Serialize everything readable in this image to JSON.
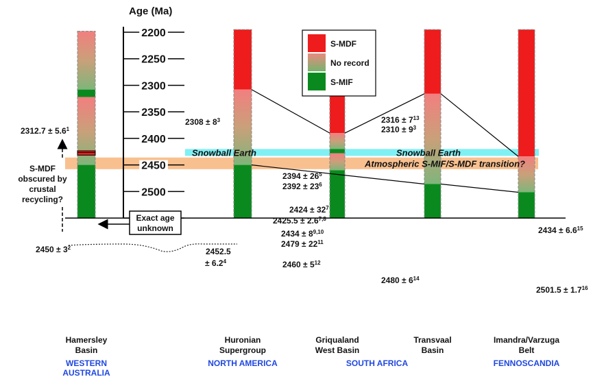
{
  "axis": {
    "title": "Age (Ma)",
    "ticks": [
      2200,
      2250,
      2300,
      2350,
      2400,
      2450,
      2500,
      2550
    ]
  },
  "legend": [
    {
      "label": "S-MDF",
      "color": "#ee1c1c"
    },
    {
      "label": "No record",
      "color": "#a8b97a"
    },
    {
      "label": "S-MIF",
      "color": "#0a8a1e"
    }
  ],
  "colors": {
    "smdf": "#ee1c1c",
    "smif": "#0a8a1e",
    "snowball": "#7ff0f4",
    "transition": "#f9c08f"
  },
  "bands": {
    "snowball": {
      "label": "Snowball Earth",
      "label_right": "Snowball Earth",
      "from": 2420,
      "to": 2433
    },
    "transition": {
      "label": "Atmospheric S-MIF/S-MDF transition?",
      "from": 2436,
      "to": 2458
    }
  },
  "columns": [
    {
      "id": "hamersley",
      "name": [
        "Hamersley",
        "Basin"
      ],
      "region": [
        "WESTERN",
        "AUSTRALIA"
      ],
      "top": 2198,
      "bottom": 2550,
      "segments": [
        {
          "type": "gradient",
          "from": 2198,
          "to": 2308
        },
        {
          "type": "smif",
          "from": 2308,
          "to": 2322
        },
        {
          "type": "gradient",
          "from": 2322,
          "to": 2450
        },
        {
          "type": "smif",
          "from": 2450,
          "to": 2550
        }
      ]
    },
    {
      "id": "huronian",
      "name": [
        "Huronian",
        "Supergroup"
      ],
      "region": [
        "NORTH AMERICA"
      ],
      "top": 2195,
      "bottom": 2550,
      "segments": [
        {
          "type": "smdf",
          "from": 2195,
          "to": 2308
        },
        {
          "type": "gradient",
          "from": 2308,
          "to": 2450
        },
        {
          "type": "smif",
          "from": 2450,
          "to": 2550
        }
      ]
    },
    {
      "id": "griqualand",
      "name": [
        "Griqualand",
        "West Basin"
      ],
      "region": [
        "SOUTH AFRICA"
      ],
      "top": 2275,
      "bottom": 2550,
      "segments": [
        {
          "type": "smdf",
          "from": 2275,
          "to": 2390
        },
        {
          "type": "gradient",
          "from": 2390,
          "to": 2420
        },
        {
          "type": "smif",
          "from": 2420,
          "to": 2428
        },
        {
          "type": "gradient",
          "from": 2428,
          "to": 2460
        },
        {
          "type": "smif",
          "from": 2460,
          "to": 2550
        }
      ]
    },
    {
      "id": "transvaal",
      "name": [
        "Transvaal",
        "Basin"
      ],
      "region": [],
      "top": 2195,
      "bottom": 2550,
      "segments": [
        {
          "type": "smdf",
          "from": 2195,
          "to": 2316
        },
        {
          "type": "gradient",
          "from": 2316,
          "to": 2486
        },
        {
          "type": "smif",
          "from": 2486,
          "to": 2550
        }
      ]
    },
    {
      "id": "imandra",
      "name": [
        "Imandra/Varzuga",
        "Belt"
      ],
      "region": [
        "FENNOSCANDIA"
      ],
      "top": 2195,
      "bottom": 2550,
      "segments": [
        {
          "type": "smdf",
          "from": 2195,
          "to": 2434
        },
        {
          "type": "gradient",
          "from": 2434,
          "to": 2501.5
        },
        {
          "type": "smif",
          "from": 2501.5,
          "to": 2550
        }
      ]
    }
  ],
  "hamersley_markers": [
    2426,
    2429
  ],
  "age_labels": [
    {
      "text": "2312.7 ± 5.6",
      "sup": "1"
    },
    {
      "text": "2450 ± 3",
      "sup": "2"
    },
    {
      "text": "2308 ± 8",
      "sup": "3"
    },
    {
      "text": "2452.5",
      "sup": ""
    },
    {
      "text": "± 6.2",
      "sup": "4"
    },
    {
      "text": "2394 ± 26",
      "sup": "5"
    },
    {
      "text": "2392 ± 23",
      "sup": "6"
    },
    {
      "text": "2424 ± 32",
      "sup": "7"
    },
    {
      "text": "2425.5 ± 2.6",
      "sup": "7,8"
    },
    {
      "text": "2434 ± 8",
      "sup": "9,10"
    },
    {
      "text": "2479 ± 22",
      "sup": "11"
    },
    {
      "text": "2460 ± 5",
      "sup": "12"
    },
    {
      "text": "2316 ± 7",
      "sup": "13"
    },
    {
      "text": "2310 ± 9",
      "sup": "3"
    },
    {
      "text": "2480 ± 6",
      "sup": "14"
    },
    {
      "text": "2434 ± 6.6",
      "sup": "15"
    },
    {
      "text": "2501.5 ± 1.7",
      "sup": "16"
    }
  ],
  "annotations": {
    "obscured": [
      "S-MDF",
      "obscured by",
      "crustal",
      "recycling?"
    ],
    "exact_age": [
      "Exact age",
      "unknown"
    ]
  },
  "correlations": [
    [
      [
        "huronian",
        "right",
        2308
      ],
      [
        "griqualand",
        "left",
        2390
      ]
    ],
    [
      [
        "griqualand",
        "right",
        2390
      ],
      [
        "transvaal",
        "left",
        2316
      ]
    ],
    [
      [
        "transvaal",
        "right",
        2316
      ],
      [
        "imandra",
        "left",
        2434
      ]
    ],
    [
      [
        "huronian",
        "right",
        2450
      ],
      [
        "transvaal",
        "left",
        2486
      ]
    ],
    [
      [
        "transvaal",
        "right",
        2486
      ],
      [
        "imandra",
        "left",
        2501.5
      ]
    ]
  ]
}
